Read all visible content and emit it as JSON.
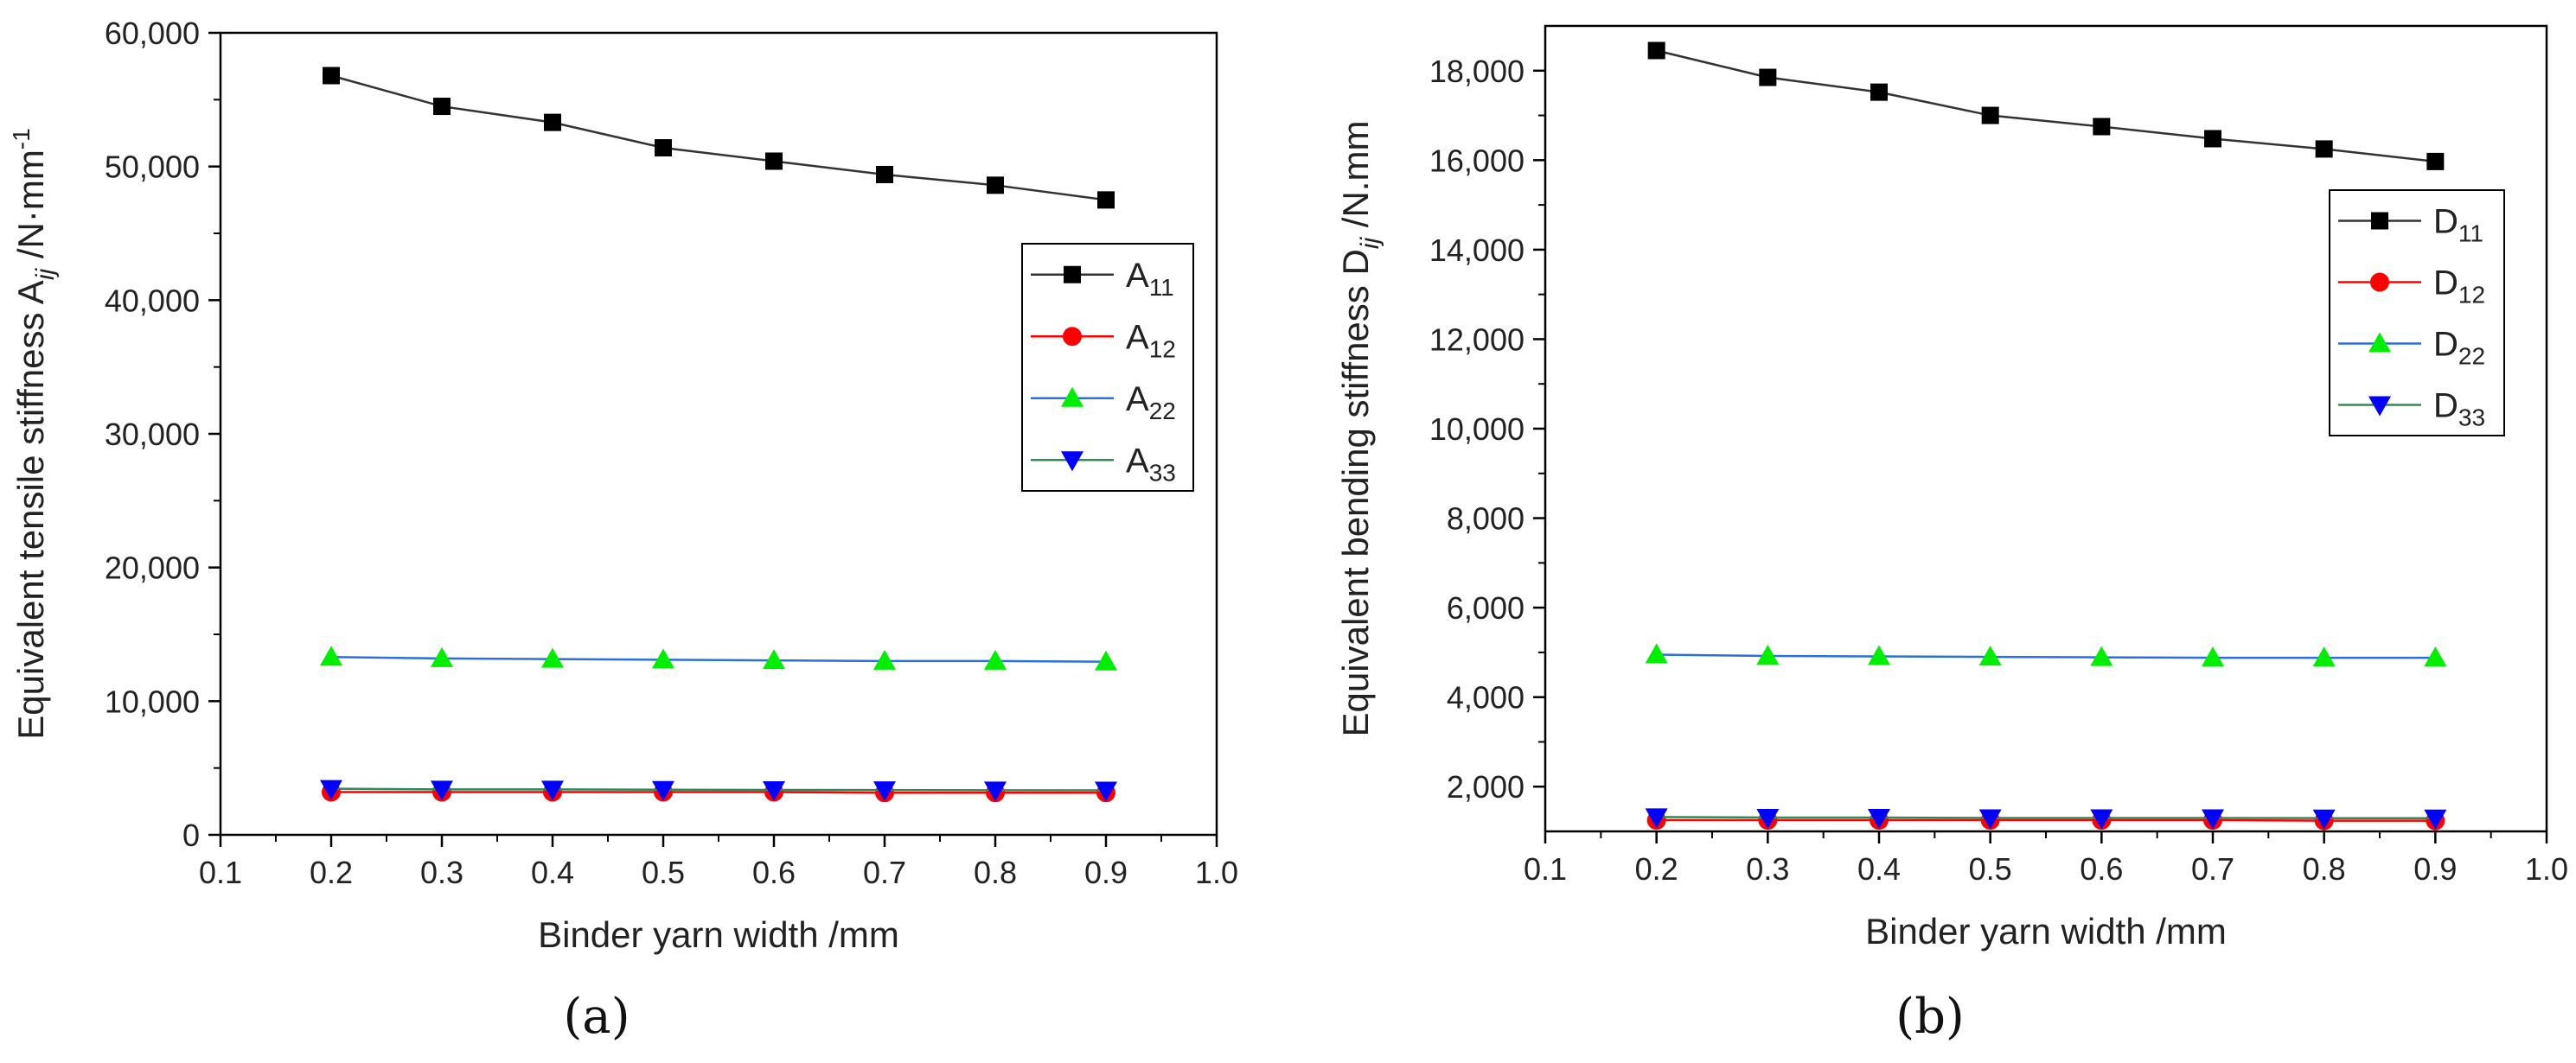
{
  "chart_data": [
    {
      "type": "line",
      "xlabel": "Binder yarn width /mm",
      "ylabel": {
        "main": "Equivalent tensile stiffness A",
        "sub": "ij",
        "unit": " /N·mm",
        "sup": "-1"
      },
      "panel_label": "(a)",
      "xlim": [
        0.1,
        1.0
      ],
      "ylim": [
        0,
        60000
      ],
      "x_ticks": [
        "0.1",
        "0.2",
        "0.3",
        "0.4",
        "0.5",
        "0.6",
        "0.7",
        "0.8",
        "0.9",
        "1.0"
      ],
      "y_ticks": [
        {
          "value": 0,
          "label": "0"
        },
        {
          "value": 10000,
          "label": "10,000"
        },
        {
          "value": 20000,
          "label": "20,000"
        },
        {
          "value": 30000,
          "label": "30,000"
        },
        {
          "value": 40000,
          "label": "40,000"
        },
        {
          "value": 50000,
          "label": "50,000"
        },
        {
          "value": 60000,
          "label": "60,000"
        }
      ],
      "x": [
        0.2,
        0.3,
        0.4,
        0.5,
        0.6,
        0.7,
        0.8,
        0.9
      ],
      "legend_position": "right-middle",
      "grid": false,
      "series": [
        {
          "name": "A",
          "sub": "11",
          "color": "#000000",
          "line_color": "#333333",
          "marker": "square",
          "values": [
            56800,
            54500,
            53300,
            51400,
            50400,
            49400,
            48600,
            47500
          ]
        },
        {
          "name": "A",
          "sub": "12",
          "color": "#ff0000",
          "line_color": "#ff0000",
          "marker": "circle",
          "values": [
            3200,
            3200,
            3200,
            3200,
            3200,
            3150,
            3150,
            3150
          ]
        },
        {
          "name": "A",
          "sub": "22",
          "color": "#00ee00",
          "line_color": "#2a6fdb",
          "marker": "triangle-up",
          "values": [
            13300,
            13200,
            13150,
            13100,
            13050,
            13000,
            13000,
            12950
          ]
        },
        {
          "name": "A",
          "sub": "33",
          "color": "#0000ff",
          "line_color": "#2e8b57",
          "marker": "triangle-down",
          "values": [
            3450,
            3400,
            3400,
            3380,
            3360,
            3350,
            3340,
            3330
          ]
        }
      ]
    },
    {
      "type": "line",
      "xlabel": "Binder yarn width /mm",
      "ylabel": {
        "main": "Equivalent bending stiffness D",
        "sub": "ij",
        "unit": " /N.mm",
        "sup": ""
      },
      "panel_label": "(b)",
      "xlim": [
        0.1,
        1.0
      ],
      "ylim": [
        1000,
        19000
      ],
      "x_ticks": [
        "0.1",
        "0.2",
        "0.3",
        "0.4",
        "0.5",
        "0.6",
        "0.7",
        "0.8",
        "0.9",
        "1.0"
      ],
      "y_ticks": [
        {
          "value": 2000,
          "label": "2,000"
        },
        {
          "value": 4000,
          "label": "4,000"
        },
        {
          "value": 6000,
          "label": "6,000"
        },
        {
          "value": 8000,
          "label": "8,000"
        },
        {
          "value": 10000,
          "label": "10,000"
        },
        {
          "value": 12000,
          "label": "12,000"
        },
        {
          "value": 14000,
          "label": "14,000"
        },
        {
          "value": 16000,
          "label": "16,000"
        },
        {
          "value": 18000,
          "label": "18,000"
        }
      ],
      "x": [
        0.2,
        0.3,
        0.4,
        0.5,
        0.6,
        0.7,
        0.8,
        0.9
      ],
      "legend_position": "top-right",
      "grid": false,
      "series": [
        {
          "name": "D",
          "sub": "11",
          "color": "#000000",
          "line_color": "#333333",
          "marker": "square",
          "values": [
            18450,
            17850,
            17520,
            17000,
            16750,
            16480,
            16250,
            15970
          ]
        },
        {
          "name": "D",
          "sub": "12",
          "color": "#ff0000",
          "line_color": "#ff0000",
          "marker": "circle",
          "values": [
            1250,
            1250,
            1250,
            1250,
            1250,
            1250,
            1240,
            1240
          ]
        },
        {
          "name": "D",
          "sub": "22",
          "color": "#00ee00",
          "line_color": "#2a6fdb",
          "marker": "triangle-up",
          "values": [
            4950,
            4920,
            4910,
            4900,
            4890,
            4880,
            4880,
            4880
          ]
        },
        {
          "name": "D",
          "sub": "33",
          "color": "#0000ff",
          "line_color": "#2e8b57",
          "marker": "triangle-down",
          "values": [
            1320,
            1310,
            1310,
            1300,
            1300,
            1300,
            1295,
            1295
          ]
        }
      ]
    }
  ]
}
